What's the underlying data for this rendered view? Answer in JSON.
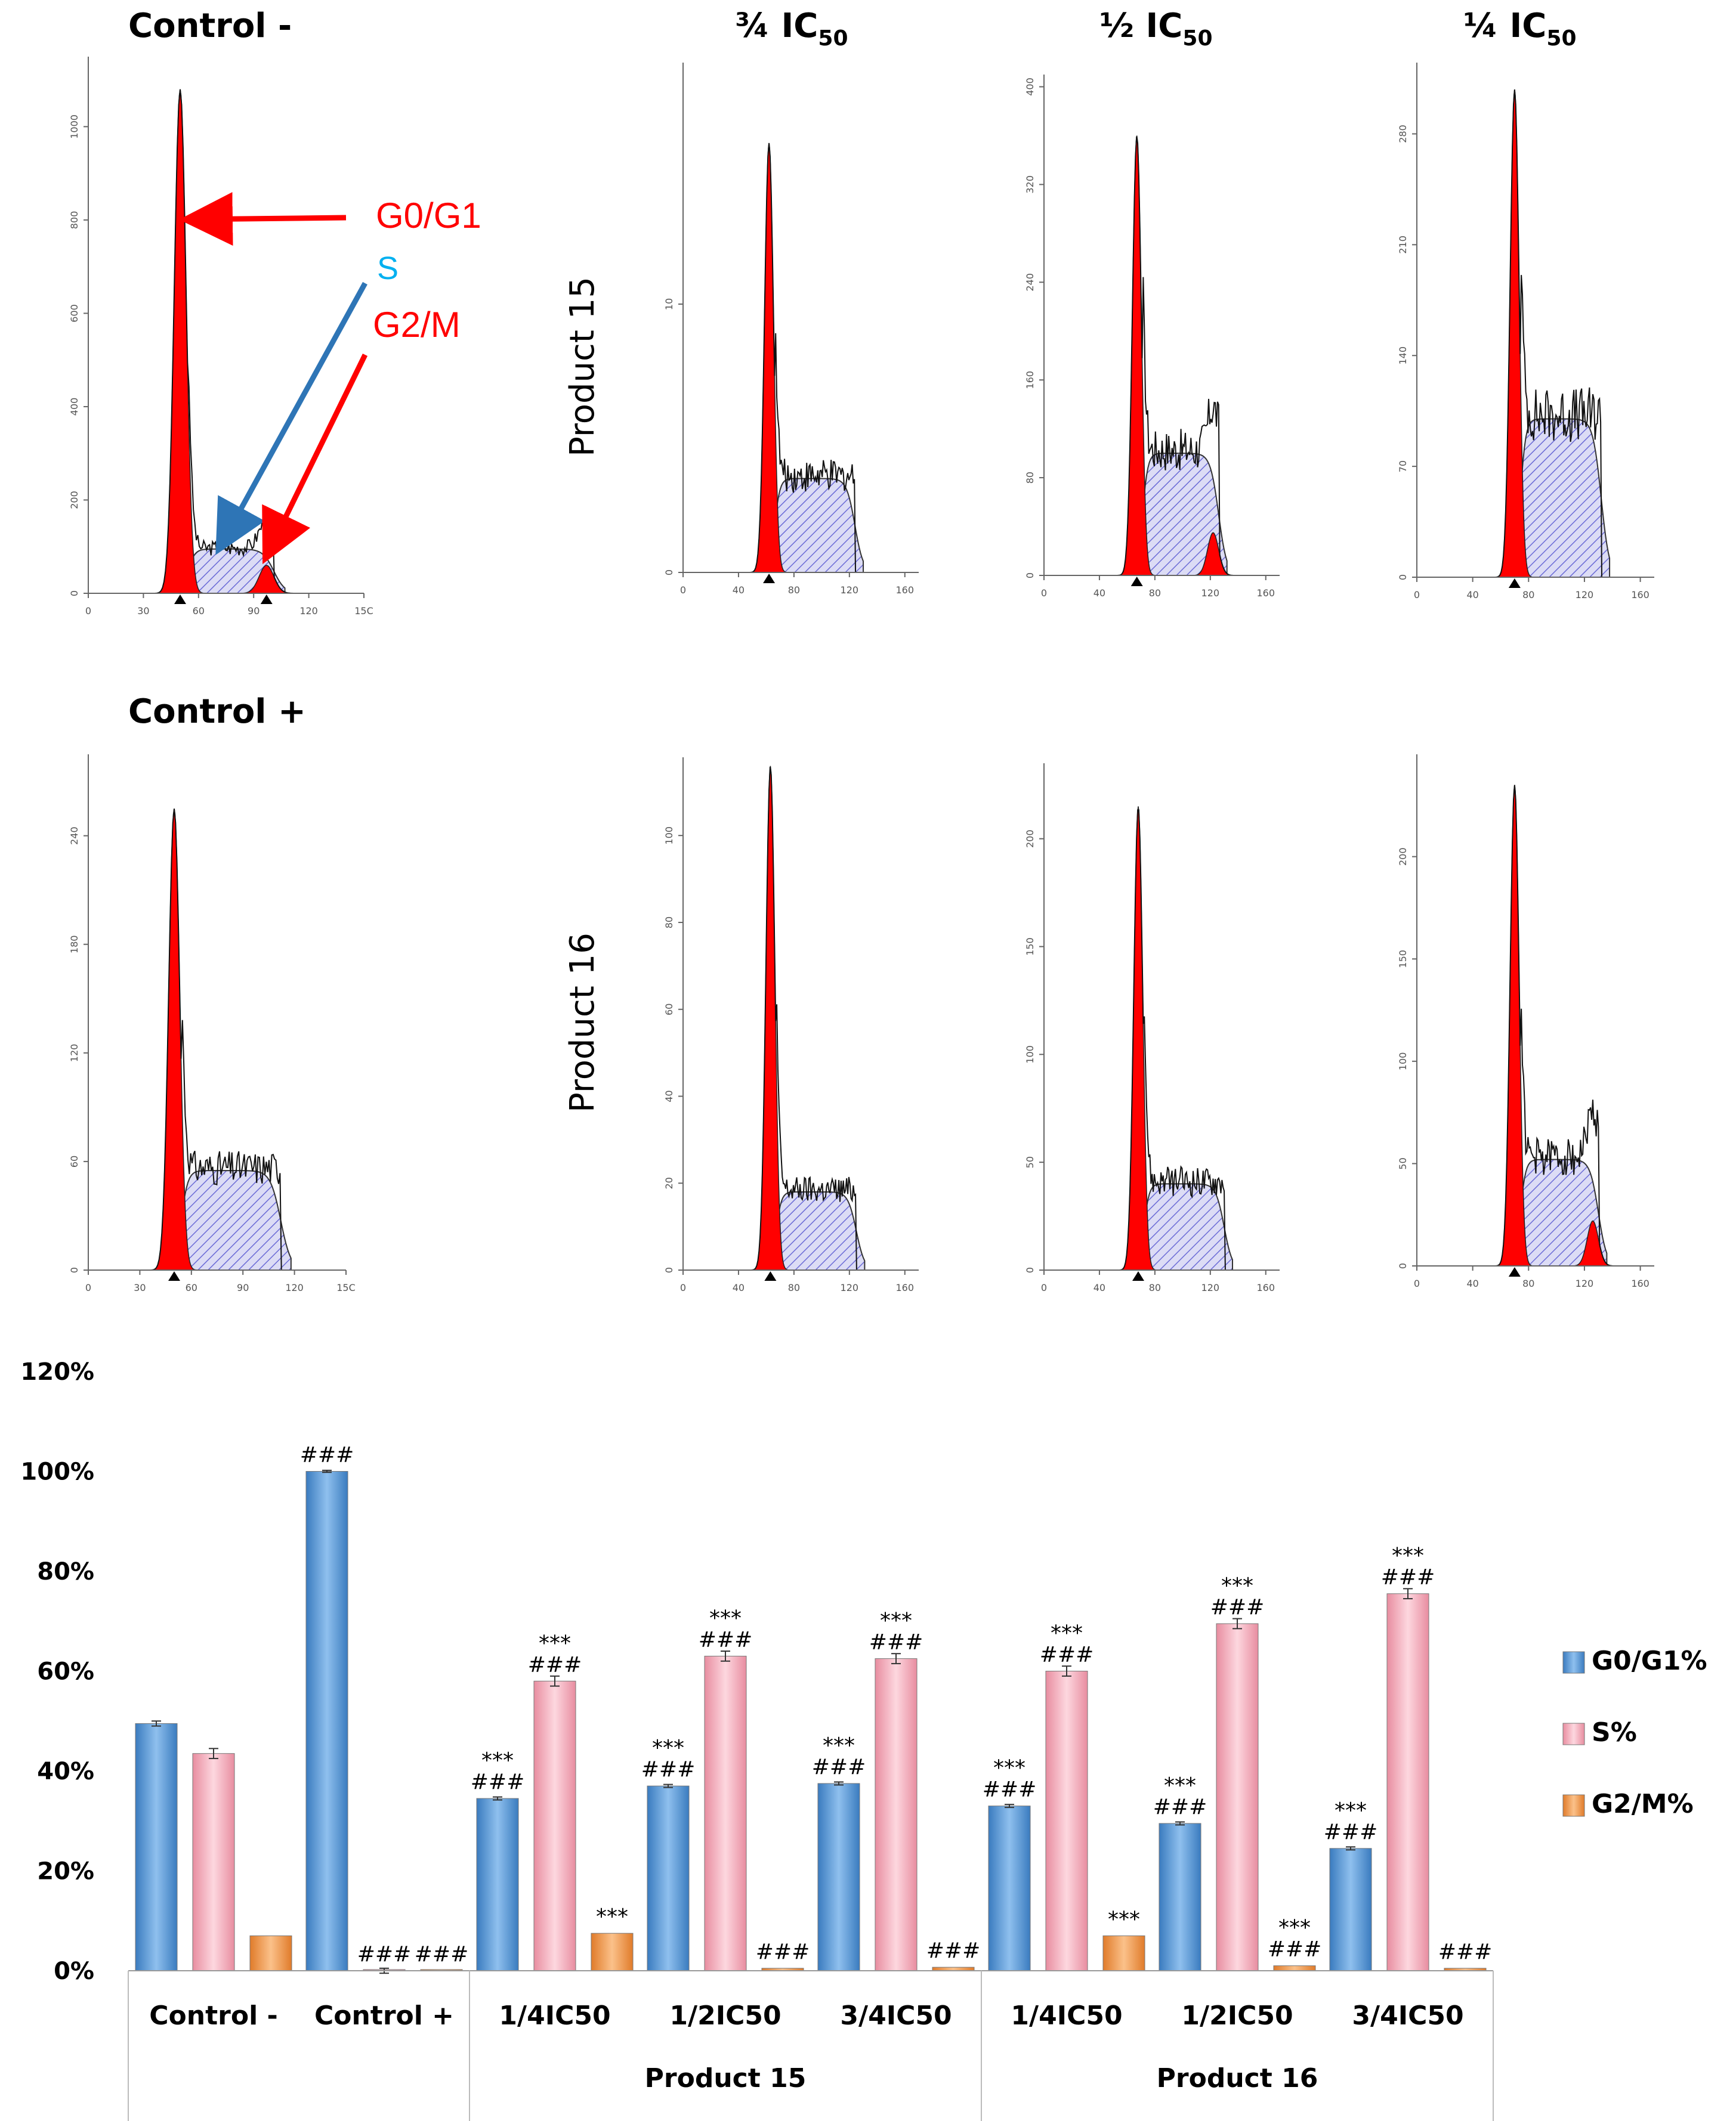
{
  "figure": {
    "histograms": {
      "row1_title": "Control -",
      "row2_title": "Control +",
      "col_titles": [
        {
          "prefix": "¾ IC",
          "sub": "50"
        },
        {
          "prefix": "½  IC",
          "sub": "50"
        },
        {
          "prefix": "¼  IC",
          "sub": "50"
        }
      ],
      "row_labels": [
        "Product 15",
        "Product 16"
      ],
      "annotations": {
        "g0g1": "G0/G1",
        "s": "S",
        "g2m": "G2/M"
      },
      "colors": {
        "g0g1_arrow": "#ff0000",
        "s_arrow": "#2e75b6",
        "s_text": "#00b0f0",
        "fill_red": "#ff0000",
        "hatch": "#6b6bd6"
      }
    }
  },
  "chart_data": [
    {
      "type": "histogram",
      "title": "Control -",
      "x_ticks": [
        "0",
        "30",
        "60",
        "90",
        "120",
        "15C"
      ],
      "y_ticks": [
        "0",
        "200",
        "400",
        "600",
        "800",
        "1000"
      ],
      "xlim": [
        0,
        150
      ],
      "ylim": [
        0,
        1150
      ],
      "peaks": {
        "g1_pos": 50,
        "g1_height": 1080,
        "g2_pos": 97,
        "g2_height": 60,
        "s_plateau": 95
      },
      "markers": [
        50,
        97
      ]
    },
    {
      "type": "histogram",
      "title": "¾ IC50 – Product 15",
      "x_ticks": [
        "0",
        "40",
        "80",
        "120",
        "160"
      ],
      "y_ticks": [
        "0",
        "10"
      ],
      "xlim": [
        0,
        170
      ],
      "ylim": [
        0,
        19
      ],
      "peaks": {
        "g1_pos": 62,
        "g1_height": 16,
        "s_plateau": 3.5
      },
      "markers": [
        62
      ]
    },
    {
      "type": "histogram",
      "title": "½ IC50 – Product 15",
      "x_ticks": [
        "0",
        "40",
        "80",
        "120",
        "160"
      ],
      "y_ticks": [
        "0",
        "80",
        "160",
        "240",
        "320",
        "400"
      ],
      "xlim": [
        0,
        170
      ],
      "ylim": [
        0,
        410
      ],
      "peaks": {
        "g1_pos": 67,
        "g1_height": 360,
        "g2_pos": 122,
        "g2_height": 35,
        "s_plateau": 100
      },
      "markers": [
        67
      ]
    },
    {
      "type": "histogram",
      "title": "¼ IC50 – Product 15",
      "x_ticks": [
        "0",
        "40",
        "80",
        "120",
        "160"
      ],
      "y_ticks": [
        "0",
        "70",
        "140",
        "210",
        "280"
      ],
      "xlim": [
        0,
        170
      ],
      "ylim": [
        0,
        325
      ],
      "peaks": {
        "g1_pos": 70,
        "g1_height": 308,
        "s_plateau": 100
      },
      "markers": [
        70
      ]
    },
    {
      "type": "histogram",
      "title": "Control +",
      "x_ticks": [
        "0",
        "30",
        "60",
        "90",
        "120",
        "15C"
      ],
      "y_ticks": [
        "0",
        "60",
        "120",
        "180",
        "240"
      ],
      "xlim": [
        0,
        150
      ],
      "ylim": [
        0,
        285
      ],
      "peaks": {
        "g1_pos": 50,
        "g1_height": 255,
        "s_plateau": 55
      },
      "markers": [
        50
      ]
    },
    {
      "type": "histogram",
      "title": "¾ IC50 – Product 16",
      "x_ticks": [
        "0",
        "40",
        "80",
        "120",
        "160"
      ],
      "y_ticks": [
        "0",
        "20",
        "40",
        "60",
        "80",
        "100"
      ],
      "xlim": [
        0,
        170
      ],
      "ylim": [
        0,
        118
      ],
      "peaks": {
        "g1_pos": 63,
        "g1_height": 116,
        "s_plateau": 18
      },
      "markers": [
        63
      ]
    },
    {
      "type": "histogram",
      "title": "½ IC50 – Product 16",
      "x_ticks": [
        "0",
        "40",
        "80",
        "120",
        "160"
      ],
      "y_ticks": [
        "0",
        "50",
        "100",
        "150",
        "200"
      ],
      "xlim": [
        0,
        170
      ],
      "ylim": [
        0,
        235
      ],
      "peaks": {
        "g1_pos": 68,
        "g1_height": 215,
        "s_plateau": 40
      },
      "markers": [
        68
      ]
    },
    {
      "type": "histogram",
      "title": "¼ IC50 – Product 16",
      "x_ticks": [
        "0",
        "40",
        "80",
        "120",
        "160"
      ],
      "y_ticks": [
        "0",
        "50",
        "100",
        "150",
        "200"
      ],
      "xlim": [
        0,
        170
      ],
      "ylim": [
        0,
        250
      ],
      "peaks": {
        "g1_pos": 70,
        "g1_height": 235,
        "g2_pos": 126,
        "g2_height": 22,
        "s_plateau": 52
      },
      "markers": [
        70
      ]
    },
    {
      "type": "bar",
      "title": "",
      "ylim": [
        0,
        1.2
      ],
      "y_ticks": [
        "0%",
        "20%",
        "40%",
        "60%",
        "80%",
        "100%",
        "120%"
      ],
      "categories": [
        "Control -",
        "Control +",
        "1/4IC50",
        "1/2IC50",
        "3/4IC50",
        "1/4IC50",
        "1/2IC50",
        "3/4IC50"
      ],
      "groups": [
        {
          "label": "Product 15",
          "categories": [
            2,
            3,
            4
          ]
        },
        {
          "label": "Product 16",
          "categories": [
            5,
            6,
            7
          ]
        }
      ],
      "series": [
        {
          "name": "G0/G1%",
          "color": "#5b9bd5",
          "values": [
            0.495,
            1.0,
            0.345,
            0.37,
            0.375,
            0.33,
            0.295,
            0.245
          ],
          "errors": [
            0.005,
            0.002,
            0.003,
            0.003,
            0.003,
            0.003,
            0.003,
            0.003
          ],
          "labels": [
            [],
            [
              "###"
            ],
            [
              "***",
              "###"
            ],
            [
              "***",
              "###"
            ],
            [
              "***",
              "###"
            ],
            [
              "***",
              "###"
            ],
            [
              "***",
              "###"
            ],
            [
              "***",
              "###"
            ]
          ]
        },
        {
          "name": "S%",
          "color": "#f4a6b5",
          "values": [
            0.435,
            0.0,
            0.58,
            0.63,
            0.625,
            0.6,
            0.695,
            0.755
          ],
          "errors": [
            0.01,
            0.005,
            0.01,
            0.01,
            0.01,
            0.01,
            0.01,
            0.01
          ],
          "labels": [
            [],
            [
              "###"
            ],
            [
              "***",
              "###"
            ],
            [
              "***",
              "###"
            ],
            [
              "***",
              "###"
            ],
            [
              "***",
              "###"
            ],
            [
              "***",
              "###"
            ],
            [
              "***",
              "###"
            ]
          ]
        },
        {
          "name": "G2/M%",
          "color": "#f4a460",
          "values": [
            0.07,
            0.0,
            0.075,
            0.005,
            0.007,
            0.07,
            0.01,
            0.005
          ],
          "errors": [
            0,
            0,
            0,
            0,
            0,
            0,
            0,
            0
          ],
          "labels": [
            [],
            [
              "###"
            ],
            [
              "***"
            ],
            [
              "###"
            ],
            [
              "###"
            ],
            [
              "***"
            ],
            [
              "***",
              "###"
            ],
            [
              "###"
            ]
          ]
        }
      ],
      "legend": [
        "G0/G1%",
        "S%",
        "G2/M%"
      ],
      "legend_position": "right"
    }
  ]
}
